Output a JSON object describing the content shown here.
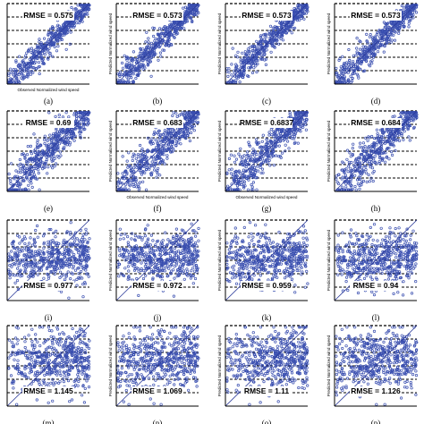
{
  "figure": {
    "xlabel": "Observed Normalized wind speed",
    "ylabel": "Predicted Normalized wind speed"
  },
  "chart_data": [
    {
      "type": "scatter",
      "label": "(a)",
      "rmse_text": "RMSE = 0.575",
      "spread": 0.09,
      "offset": 0.0,
      "xlim": [
        0,
        1
      ],
      "ylim": [
        0,
        1
      ],
      "grid": "horizontal-dashed",
      "rmse_position": "top",
      "ylabel_visible": false,
      "xlabel_visible": true
    },
    {
      "type": "scatter",
      "label": "(b)",
      "rmse_text": "RMSE = 0.573",
      "spread": 0.09,
      "offset": 0.0,
      "xlim": [
        0,
        1
      ],
      "ylim": [
        0,
        1
      ],
      "grid": "horizontal-dashed",
      "rmse_position": "top",
      "ylabel_visible": true,
      "xlabel_visible": false
    },
    {
      "type": "scatter",
      "label": "(c)",
      "rmse_text": "RMSE = 0.573",
      "spread": 0.09,
      "offset": 0.0,
      "xlim": [
        0,
        1
      ],
      "ylim": [
        0,
        1
      ],
      "grid": "horizontal-dashed",
      "rmse_position": "top",
      "ylabel_visible": true,
      "xlabel_visible": false
    },
    {
      "type": "scatter",
      "label": "(d)",
      "rmse_text": "RMSE = 0.573",
      "spread": 0.09,
      "offset": 0.0,
      "xlim": [
        0,
        1
      ],
      "ylim": [
        0,
        1
      ],
      "grid": "horizontal-dashed",
      "rmse_position": "top",
      "ylabel_visible": true,
      "xlabel_visible": false
    },
    {
      "type": "scatter",
      "label": "(e)",
      "rmse_text": "RMSE = 0.69",
      "spread": 0.14,
      "offset": 0.05,
      "xlim": [
        0,
        1
      ],
      "ylim": [
        0,
        1
      ],
      "grid": "horizontal-dashed",
      "rmse_position": "top",
      "ylabel_visible": false,
      "xlabel_visible": false
    },
    {
      "type": "scatter",
      "label": "(f)",
      "rmse_text": "RMSE = 0.683",
      "spread": 0.14,
      "offset": 0.05,
      "xlim": [
        0,
        1
      ],
      "ylim": [
        0,
        1
      ],
      "grid": "horizontal-dashed",
      "rmse_position": "top",
      "ylabel_visible": true,
      "xlabel_visible": true
    },
    {
      "type": "scatter",
      "label": "(g)",
      "rmse_text": "RMSE = 0.6837",
      "spread": 0.14,
      "offset": 0.05,
      "xlim": [
        0,
        1
      ],
      "ylim": [
        0,
        1
      ],
      "grid": "horizontal-dashed",
      "rmse_position": "top",
      "ylabel_visible": true,
      "xlabel_visible": true
    },
    {
      "type": "scatter",
      "label": "(h)",
      "rmse_text": "RMSE = 0.684",
      "spread": 0.14,
      "offset": 0.05,
      "xlim": [
        0,
        1
      ],
      "ylim": [
        0,
        1
      ],
      "grid": "horizontal-dashed",
      "rmse_position": "top",
      "ylabel_visible": true,
      "xlabel_visible": false
    },
    {
      "type": "scatter",
      "label": "(i)",
      "rmse_text": "RMSE = 0.977",
      "spread": 0.28,
      "offset": 0.15,
      "xlim": [
        0,
        1
      ],
      "ylim": [
        0,
        1
      ],
      "grid": "horizontal-dashed",
      "rmse_position": "bottom",
      "ylabel_visible": false,
      "xlabel_visible": false
    },
    {
      "type": "scatter",
      "label": "(j)",
      "rmse_text": "RMSE = 0.972",
      "spread": 0.28,
      "offset": 0.15,
      "xlim": [
        0,
        1
      ],
      "ylim": [
        0,
        1
      ],
      "grid": "horizontal-dashed",
      "rmse_position": "bottom",
      "ylabel_visible": true,
      "xlabel_visible": false
    },
    {
      "type": "scatter",
      "label": "(k)",
      "rmse_text": "RMSE = 0.959",
      "spread": 0.28,
      "offset": 0.15,
      "xlim": [
        0,
        1
      ],
      "ylim": [
        0,
        1
      ],
      "grid": "horizontal-dashed",
      "rmse_position": "bottom",
      "ylabel_visible": true,
      "xlabel_visible": false
    },
    {
      "type": "scatter",
      "label": "(l)",
      "rmse_text": "RMSE = 0.94",
      "spread": 0.28,
      "offset": 0.15,
      "xlim": [
        0,
        1
      ],
      "ylim": [
        0,
        1
      ],
      "grid": "horizontal-dashed",
      "rmse_position": "bottom",
      "ylabel_visible": true,
      "xlabel_visible": false
    },
    {
      "type": "scatter",
      "label": "(m)",
      "rmse_text": "RMSE = 1.145",
      "spread": 0.34,
      "offset": 0.2,
      "xlim": [
        0,
        1
      ],
      "ylim": [
        0,
        1
      ],
      "grid": "horizontal-dashed",
      "rmse_position": "bottom",
      "ylabel_visible": false,
      "xlabel_visible": false
    },
    {
      "type": "scatter",
      "label": "(n)",
      "rmse_text": "RMSE = 1.069",
      "spread": 0.34,
      "offset": 0.2,
      "xlim": [
        0,
        1
      ],
      "ylim": [
        0,
        1
      ],
      "grid": "horizontal-dashed",
      "rmse_position": "bottom",
      "ylabel_visible": true,
      "xlabel_visible": false
    },
    {
      "type": "scatter",
      "label": "(o)",
      "rmse_text": "RMSE = 1.11",
      "spread": 0.34,
      "offset": 0.2,
      "xlim": [
        0,
        1
      ],
      "ylim": [
        0,
        1
      ],
      "grid": "horizontal-dashed",
      "rmse_position": "bottom",
      "ylabel_visible": true,
      "xlabel_visible": false
    },
    {
      "type": "scatter",
      "label": "(p)",
      "rmse_text": "RMSE = 1.126",
      "spread": 0.34,
      "offset": 0.2,
      "xlim": [
        0,
        1
      ],
      "ylim": [
        0,
        1
      ],
      "grid": "horizontal-dashed",
      "rmse_position": "bottom",
      "ylabel_visible": true,
      "xlabel_visible": false
    }
  ],
  "colors": {
    "points": "#3a4fb0",
    "reference_line": "#2b3a9a",
    "axis": "#000000",
    "grid": "#000000",
    "text": "#000000"
  }
}
